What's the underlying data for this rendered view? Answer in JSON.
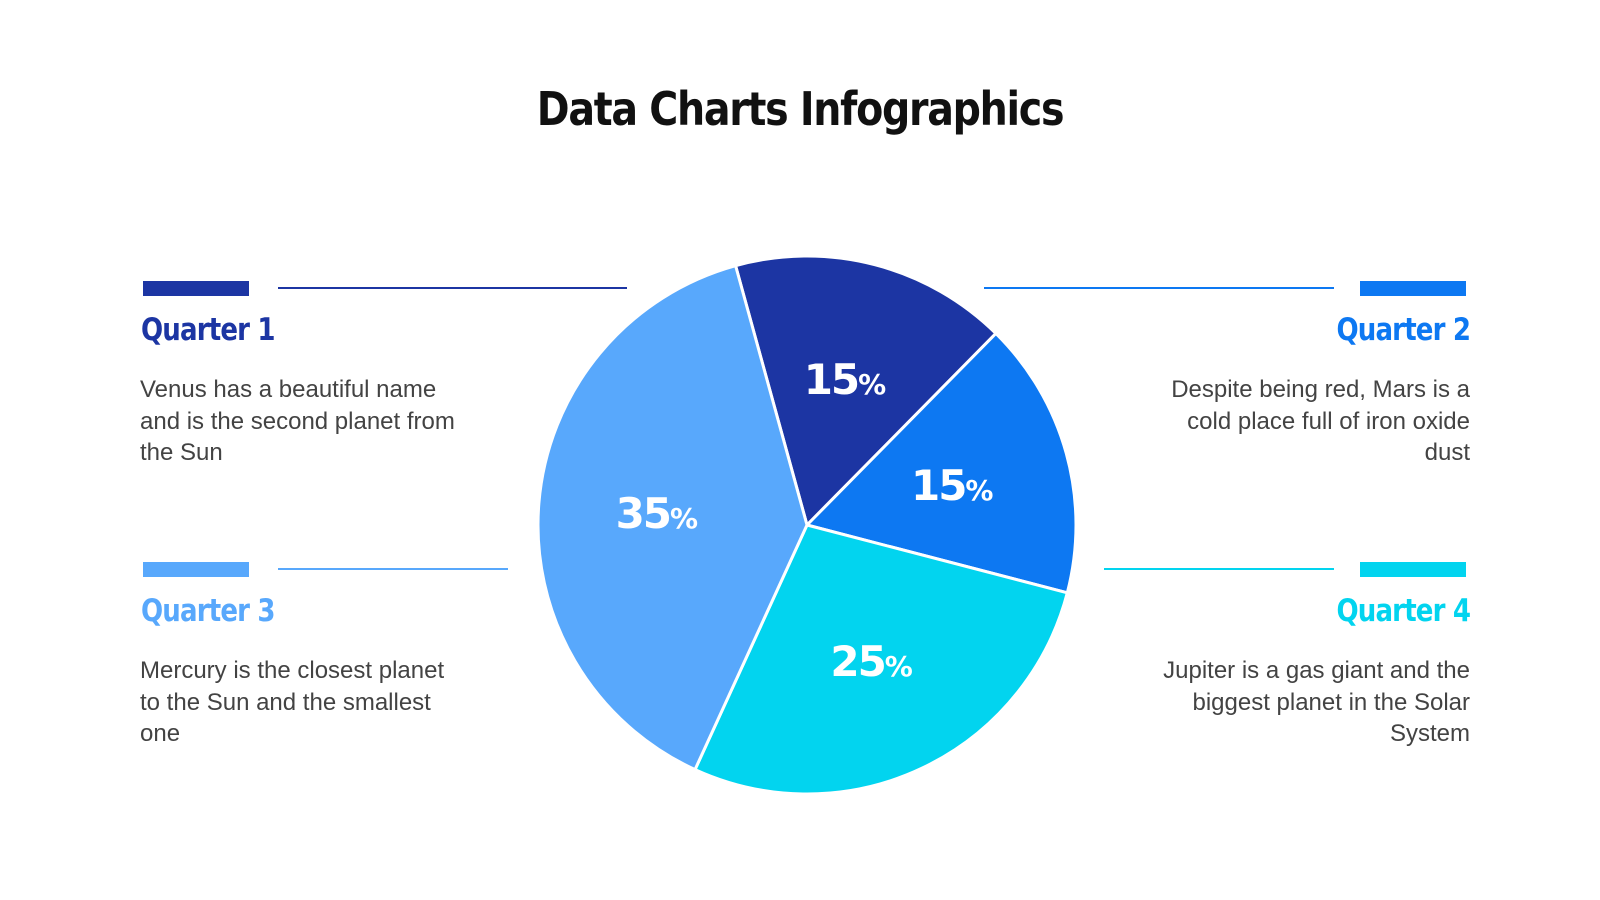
{
  "title": "Data Charts Infographics",
  "quarters": [
    {
      "label": "Quarter 1",
      "text": "Venus has a beautiful name and is the second planet from the Sun",
      "color": "#1c35a3"
    },
    {
      "label": "Quarter 2",
      "text": "Despite being red, Mars is a cold place full of iron oxide dust",
      "color": "#0d78f2"
    },
    {
      "label": "Quarter 3",
      "text": "Mercury is the closest planet to the Sun and the smallest one",
      "color": "#58a8fc"
    },
    {
      "label": "Quarter 4",
      "text": "Jupiter is a gas giant and the biggest planet in the Solar System",
      "color": "#02d4ef"
    }
  ],
  "chart_data": {
    "type": "pie",
    "title": "",
    "categories": [
      "Quarter 1",
      "Quarter 2",
      "Quarter 4",
      "Quarter 3"
    ],
    "values": [
      15,
      15,
      25,
      35
    ],
    "labels": [
      "15%",
      "15%",
      "25%",
      "35%"
    ],
    "colors": [
      "#1c35a3",
      "#0d78f2",
      "#02d4ef",
      "#58a8fc"
    ]
  }
}
